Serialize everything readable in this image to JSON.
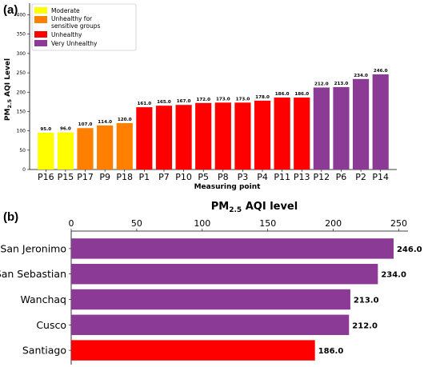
{
  "panel_labels": {
    "a": "(a)",
    "b": "(b)"
  },
  "colors": {
    "Moderate": "#ffff00",
    "Unhealthy for sensitive groups": "#ff7f00",
    "Unhealthy": "#ff0000",
    "Very Unhealthy": "#8b3a96"
  },
  "chart_data": [
    {
      "type": "bar",
      "orientation": "vertical",
      "xlabel": "Measuring point",
      "ylabel_main": "PM",
      "ylabel_sub": "2.5",
      "ylabel_rest": " AQI Level",
      "ylim": [
        0,
        430
      ],
      "yticks": [
        0,
        50,
        100,
        150,
        200,
        250,
        300,
        350,
        400
      ],
      "grid": false,
      "legend_position": "top-left",
      "legend": [
        {
          "label": "Moderate",
          "color_key": "Moderate"
        },
        {
          "label": "Unhealthy for",
          "label2": "sensitive groups",
          "color_key": "Unhealthy for sensitive groups"
        },
        {
          "label": "Unhealthy",
          "color_key": "Unhealthy"
        },
        {
          "label": "Very Unhealthy",
          "color_key": "Very Unhealthy"
        }
      ],
      "categories": [
        "P16",
        "P15",
        "P17",
        "P9",
        "P18",
        "P1",
        "P7",
        "P10",
        "P5",
        "P8",
        "P3",
        "P4",
        "P11",
        "P13",
        "P12",
        "P6",
        "P2",
        "P14"
      ],
      "values": [
        95.0,
        96.0,
        107.0,
        114.0,
        120.0,
        161.0,
        165.0,
        167.0,
        172.0,
        173.0,
        173.0,
        178.0,
        186.0,
        186.0,
        212.0,
        213.0,
        234.0,
        246.0
      ],
      "value_labels": [
        "95.0",
        "96.0",
        "107.0",
        "114.0",
        "120.0",
        "161.0",
        "165.0",
        "167.0",
        "172.0",
        "173.0",
        "173.0",
        "178.0",
        "186.0",
        "186.0",
        "212.0",
        "213.0",
        "234.0",
        "246.0"
      ],
      "levels": [
        "Moderate",
        "Moderate",
        "Unhealthy for sensitive groups",
        "Unhealthy for sensitive groups",
        "Unhealthy for sensitive groups",
        "Unhealthy",
        "Unhealthy",
        "Unhealthy",
        "Unhealthy",
        "Unhealthy",
        "Unhealthy",
        "Unhealthy",
        "Unhealthy",
        "Unhealthy",
        "Very Unhealthy",
        "Very Unhealthy",
        "Very Unhealthy",
        "Very Unhealthy"
      ]
    },
    {
      "type": "bar",
      "orientation": "horizontal",
      "title_main": "PM",
      "title_sub": "2.5",
      "title_rest": " AQI level",
      "xlim": [
        0,
        257
      ],
      "xticks": [
        0,
        50,
        100,
        150,
        200,
        250
      ],
      "xaxis_position": "top",
      "grid": false,
      "categories": [
        "San Jeronimo",
        "San Sebastian",
        "Wanchaq",
        "Cusco",
        "Santiago"
      ],
      "values": [
        246.0,
        234.0,
        213.0,
        212.0,
        186.0
      ],
      "value_labels": [
        "246.0",
        "234.0",
        "213.0",
        "212.0",
        "186.0"
      ],
      "levels": [
        "Very Unhealthy",
        "Very Unhealthy",
        "Very Unhealthy",
        "Very Unhealthy",
        "Unhealthy"
      ]
    }
  ]
}
